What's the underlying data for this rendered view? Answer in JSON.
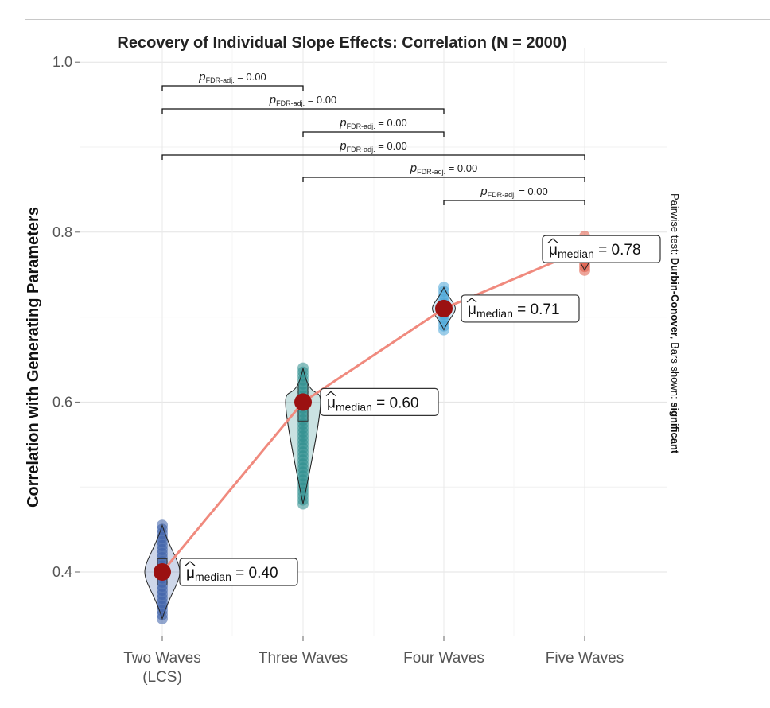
{
  "chart_data": {
    "type": "violin",
    "title": "Recovery of Individual Slope Effects: Correlation (N = 2000)",
    "xlabel": "",
    "ylabel": "Correlation with Generating Parameters",
    "ylim": [
      0.33,
      1.0
    ],
    "yticks": [
      0.4,
      0.6,
      0.8,
      1.0
    ],
    "ytick_labels": [
      "0.4",
      "0.6",
      "0.8",
      "1.0"
    ],
    "grid": true,
    "categories": [
      {
        "label_line1": "Two Waves",
        "label_line2": "(LCS)",
        "median": 0.4,
        "median_label": "0.40",
        "min": 0.345,
        "max": 0.455,
        "color": "#3b5ea8"
      },
      {
        "label_line1": "Three Waves",
        "label_line2": "",
        "median": 0.6,
        "median_label": "0.60",
        "min": 0.48,
        "max": 0.64,
        "color": "#2a8c8c"
      },
      {
        "label_line1": "Four Waves",
        "label_line2": "",
        "median": 0.71,
        "median_label": "0.71",
        "min": 0.685,
        "max": 0.735,
        "color": "#4aa6d8"
      },
      {
        "label_line1": "Five Waves",
        "label_line2": "",
        "median": 0.78,
        "median_label": "0.78",
        "min": 0.755,
        "max": 0.795,
        "color": "#e05a46"
      }
    ],
    "median_label_prefix": "μ",
    "median_label_sub": "median",
    "median_label_eq": " = ",
    "line_color": "#f08a7e",
    "median_point_color": "#9b1111",
    "comparisons": [
      {
        "from": 0,
        "to": 1,
        "p_symbol": "p",
        "p_sub": "FDR-adj.",
        "p_value": " = 0.00"
      },
      {
        "from": 0,
        "to": 2,
        "p_symbol": "p",
        "p_sub": "FDR-adj.",
        "p_value": " = 0.00"
      },
      {
        "from": 1,
        "to": 2,
        "p_symbol": "p",
        "p_sub": "FDR-adj.",
        "p_value": " = 0.00"
      },
      {
        "from": 0,
        "to": 3,
        "p_symbol": "p",
        "p_sub": "FDR-adj.",
        "p_value": " = 0.00"
      },
      {
        "from": 1,
        "to": 3,
        "p_symbol": "p",
        "p_sub": "FDR-adj.",
        "p_value": " = 0.00"
      },
      {
        "from": 2,
        "to": 3,
        "p_symbol": "p",
        "p_sub": "FDR-adj.",
        "p_value": " = 0.00"
      }
    ],
    "caption": {
      "part1": "Pairwise test: ",
      "part2": "Durbin-Conover",
      "part3": ", Bars shown: ",
      "part4": "significant"
    }
  }
}
